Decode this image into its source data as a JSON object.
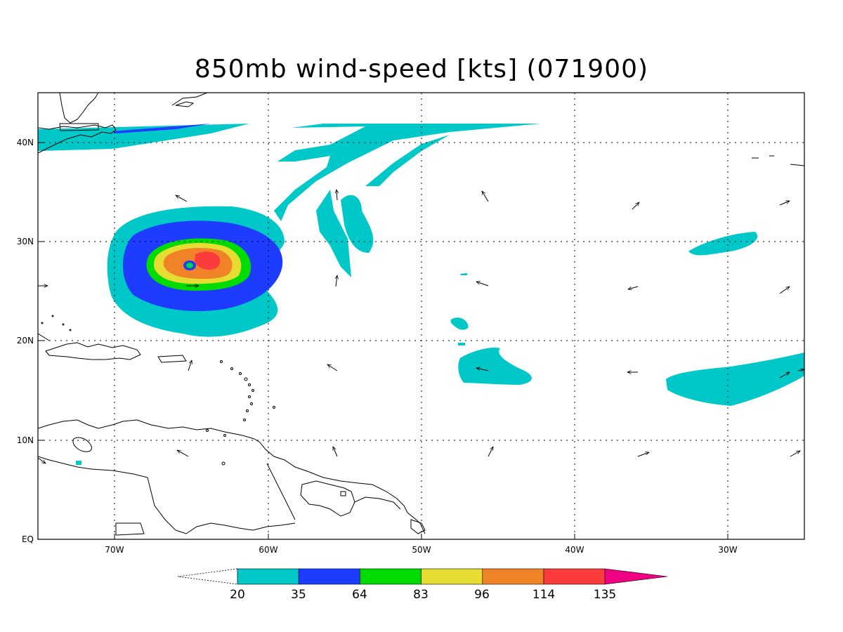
{
  "title": "850mb wind-speed [kts] (071900)",
  "axes": {
    "lon_labels": [
      "70W",
      "60W",
      "50W",
      "40W",
      "30W"
    ],
    "lat_labels": [
      "40N",
      "30N",
      "20N",
      "10N",
      "EQ"
    ],
    "lon_range": [
      -75,
      -25
    ],
    "lat_range": [
      0,
      45
    ],
    "grid": "dotted"
  },
  "colorbar": {
    "levels": [
      "20",
      "35",
      "64",
      "83",
      "96",
      "114",
      "135"
    ],
    "colors": [
      "#00c8c8",
      "#1e3cff",
      "#00dc00",
      "#e6dc32",
      "#f08228",
      "#fa3c3c",
      "#f00082"
    ]
  },
  "storm": {
    "center_lon": -65,
    "center_lat": 27.7
  }
}
